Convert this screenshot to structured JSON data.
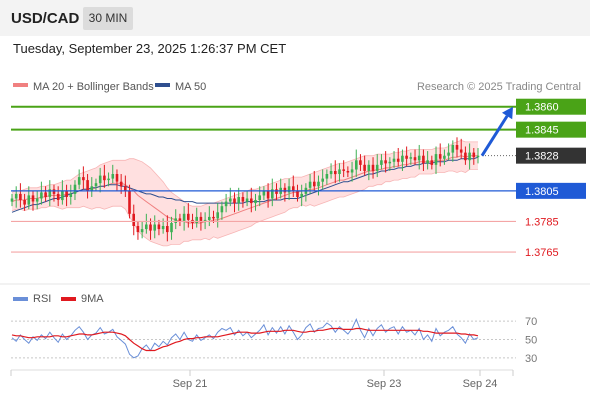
{
  "header": {
    "symbol": "USD/CAD",
    "timeframe": "30 MIN"
  },
  "datetime": "Tuesday, September 23, 2025 1:26:37 PM CET",
  "legend": {
    "ma20_label": "MA 20 + Bollinger Bands",
    "ma50_label": "MA 50",
    "credit": "Research © 2025 Trading Central",
    "ma20_color": "#f08080",
    "ma50_color": "#2f4f8f"
  },
  "rsi_legend": {
    "rsi_label": "RSI",
    "ma_label": "9MA",
    "rsi_color": "#6a8fd8",
    "ma_color": "#e0191f"
  },
  "colors": {
    "up_candle": "#3cb054",
    "down_candle": "#e0191f",
    "resistance": "#4aa317",
    "support": "#1f5ad6",
    "target_line": "#f4a6a6",
    "arrow": "#1f5ad6",
    "bollinger_fill": "#ffd5d5",
    "current_price_bg": "#333333"
  },
  "chart_data": {
    "type": "candlestick",
    "ylim": [
      1.375,
      1.3867
    ],
    "levels": [
      {
        "price": 1.386,
        "label": "1.3860",
        "kind": "resistance"
      },
      {
        "price": 1.3845,
        "label": "1.3845",
        "kind": "resistance"
      },
      {
        "price": 1.3828,
        "label": "1.3828",
        "kind": "current"
      },
      {
        "price": 1.3805,
        "label": "1.3805",
        "kind": "pivot"
      },
      {
        "price": 1.3785,
        "label": "1.3785",
        "kind": "support"
      },
      {
        "price": 1.3765,
        "label": "1.3765",
        "kind": "support"
      }
    ],
    "x_ticks": [
      "Sep 21",
      "Sep 23",
      "Sep 24"
    ],
    "close": [
      1.38,
      1.3803,
      1.3799,
      1.3796,
      1.3802,
      1.3798,
      1.38,
      1.3804,
      1.3801,
      1.3806,
      1.3803,
      1.3799,
      1.3805,
      1.3801,
      1.3803,
      1.3809,
      1.3814,
      1.3812,
      1.3805,
      1.3808,
      1.381,
      1.3815,
      1.3812,
      1.3813,
      1.3816,
      1.3811,
      1.3808,
      1.3805,
      1.379,
      1.3782,
      1.3778,
      1.378,
      1.3783,
      1.3779,
      1.3783,
      1.378,
      1.3782,
      1.3778,
      1.3784,
      1.3787,
      1.3785,
      1.379,
      1.3786,
      1.3784,
      1.3788,
      1.3785,
      1.3786,
      1.3788,
      1.3787,
      1.3791,
      1.3795,
      1.3798,
      1.38,
      1.3797,
      1.3801,
      1.3798,
      1.38,
      1.3797,
      1.3799,
      1.3802,
      1.3805,
      1.38,
      1.3806,
      1.3803,
      1.3807,
      1.3804,
      1.3808,
      1.3805,
      1.3801,
      1.3803,
      1.3807,
      1.3811,
      1.3808,
      1.3811,
      1.3813,
      1.3816,
      1.3818,
      1.3816,
      1.3819,
      1.3818,
      1.3817,
      1.3819,
      1.3825,
      1.3822,
      1.3818,
      1.3822,
      1.3818,
      1.3822,
      1.3825,
      1.3823,
      1.3824,
      1.3826,
      1.3824,
      1.3828,
      1.3826,
      1.3827,
      1.3825,
      1.3828,
      1.3823,
      1.3825,
      1.3822,
      1.3829,
      1.3826,
      1.3828,
      1.383,
      1.3835,
      1.3832,
      1.383,
      1.3825,
      1.383,
      1.3827,
      1.3828
    ],
    "ma20": [
      1.3798,
      1.3799,
      1.3799,
      1.3799,
      1.38,
      1.38,
      1.38,
      1.3801,
      1.3801,
      1.3802,
      1.3802,
      1.3802,
      1.3802,
      1.3803,
      1.3803,
      1.3804,
      1.3805,
      1.3806,
      1.3806,
      1.3806,
      1.3807,
      1.3808,
      1.3808,
      1.3809,
      1.381,
      1.381,
      1.381,
      1.3809,
      1.3807,
      1.3805,
      1.3802,
      1.38,
      1.3798,
      1.3796,
      1.3794,
      1.3792,
      1.379,
      1.3788,
      1.3787,
      1.3786,
      1.3785,
      1.3785,
      1.3784,
      1.3784,
      1.3784,
      1.3784,
      1.3785,
      1.3785,
      1.3786,
      1.3786,
      1.3787,
      1.3788,
      1.3789,
      1.379,
      1.3791,
      1.3792,
      1.3793,
      1.3794,
      1.3795,
      1.3796,
      1.3797,
      1.3798,
      1.3799,
      1.38,
      1.3801,
      1.3802,
      1.3803,
      1.3804,
      1.3804,
      1.3805,
      1.3805,
      1.3806,
      1.3806,
      1.3807,
      1.3808,
      1.3809,
      1.381,
      1.3811,
      1.3812,
      1.3812,
      1.3813,
      1.3814,
      1.3815,
      1.3816,
      1.3817,
      1.3818,
      1.3818,
      1.3819,
      1.3819,
      1.382,
      1.382,
      1.3821,
      1.3821,
      1.3822,
      1.3822,
      1.3823,
      1.3823,
      1.3824,
      1.3824,
      1.3824,
      1.3824,
      1.3825,
      1.3825,
      1.3825,
      1.3826,
      1.3827,
      1.3827,
      1.3828,
      1.3827,
      1.3828,
      1.3828,
      1.3828
    ],
    "band_upper": [
      1.3804,
      1.3805,
      1.3805,
      1.3806,
      1.3807,
      1.3807,
      1.3807,
      1.3808,
      1.3808,
      1.3809,
      1.3809,
      1.381,
      1.3811,
      1.3812,
      1.3812,
      1.3814,
      1.3816,
      1.3817,
      1.3818,
      1.3819,
      1.382,
      1.3822,
      1.3823,
      1.3824,
      1.3825,
      1.3825,
      1.3825,
      1.3825,
      1.3826,
      1.3826,
      1.3825,
      1.3824,
      1.3822,
      1.382,
      1.3817,
      1.3814,
      1.3811,
      1.3807,
      1.3804,
      1.3802,
      1.38,
      1.3798,
      1.3796,
      1.3795,
      1.3795,
      1.3795,
      1.3796,
      1.3797,
      1.3797,
      1.3798,
      1.3799,
      1.38,
      1.3801,
      1.3802,
      1.3803,
      1.3804,
      1.3805,
      1.3806,
      1.3806,
      1.3807,
      1.3808,
      1.3809,
      1.381,
      1.3811,
      1.3812,
      1.3813,
      1.3813,
      1.3814,
      1.3814,
      1.3814,
      1.3815,
      1.3816,
      1.3817,
      1.3818,
      1.3819,
      1.382,
      1.3821,
      1.3822,
      1.3823,
      1.3823,
      1.3824,
      1.3825,
      1.3826,
      1.3827,
      1.3828,
      1.3828,
      1.3828,
      1.3829,
      1.3829,
      1.3829,
      1.3829,
      1.383,
      1.383,
      1.3831,
      1.3831,
      1.3832,
      1.3832,
      1.3832,
      1.3832,
      1.3832,
      1.3832,
      1.3833,
      1.3833,
      1.3833,
      1.3834,
      1.3836,
      1.3837,
      1.3838,
      1.3837,
      1.3837,
      1.3837,
      1.3837
    ],
    "band_lower": [
      1.3792,
      1.3793,
      1.3793,
      1.3792,
      1.3793,
      1.3793,
      1.3793,
      1.3794,
      1.3794,
      1.3795,
      1.3795,
      1.3794,
      1.3793,
      1.3794,
      1.3794,
      1.3794,
      1.3794,
      1.3795,
      1.3794,
      1.3793,
      1.3794,
      1.3794,
      1.3793,
      1.3794,
      1.3795,
      1.3795,
      1.3795,
      1.3793,
      1.3788,
      1.3784,
      1.3779,
      1.3776,
      1.3774,
      1.3772,
      1.3771,
      1.377,
      1.3769,
      1.3769,
      1.377,
      1.377,
      1.377,
      1.3772,
      1.3772,
      1.3773,
      1.3773,
      1.3773,
      1.3774,
      1.3773,
      1.3775,
      1.3774,
      1.3775,
      1.3776,
      1.3777,
      1.3778,
      1.3779,
      1.378,
      1.3781,
      1.3782,
      1.3784,
      1.3785,
      1.3786,
      1.3787,
      1.3788,
      1.3789,
      1.379,
      1.3791,
      1.3793,
      1.3794,
      1.3794,
      1.3796,
      1.3795,
      1.3796,
      1.3795,
      1.3796,
      1.3797,
      1.3798,
      1.3799,
      1.38,
      1.3801,
      1.3801,
      1.3802,
      1.3803,
      1.3804,
      1.3805,
      1.3806,
      1.3808,
      1.3808,
      1.3809,
      1.3809,
      1.3811,
      1.3811,
      1.3812,
      1.3812,
      1.3813,
      1.3813,
      1.3814,
      1.3814,
      1.3816,
      1.3816,
      1.3816,
      1.3816,
      1.3817,
      1.3817,
      1.3817,
      1.3818,
      1.3818,
      1.3817,
      1.3818,
      1.3817,
      1.3819,
      1.3819,
      1.3819
    ],
    "ma50": [
      1.3791,
      1.3792,
      1.3793,
      1.3794,
      1.3795,
      1.3796,
      1.3796,
      1.3797,
      1.3798,
      1.3799,
      1.38,
      1.38,
      1.3801,
      1.3802,
      1.3803,
      1.3804,
      1.3805,
      1.3806,
      1.3806,
      1.3807,
      1.3807,
      1.3808,
      1.3808,
      1.3809,
      1.3809,
      1.3809,
      1.3808,
      1.3808,
      1.3807,
      1.3806,
      1.3805,
      1.3804,
      1.3803,
      1.3803,
      1.3802,
      1.3801,
      1.3801,
      1.38,
      1.38,
      1.3799,
      1.3799,
      1.3798,
      1.3798,
      1.3798,
      1.3797,
      1.3797,
      1.3797,
      1.3797,
      1.3797,
      1.3797,
      1.3797,
      1.3797,
      1.3797,
      1.3797,
      1.3797,
      1.3797,
      1.3798,
      1.3798,
      1.3798,
      1.3798,
      1.3798,
      1.3799,
      1.3799,
      1.3799,
      1.3799,
      1.38,
      1.38,
      1.38,
      1.38,
      1.3801,
      1.3802,
      1.3803,
      1.3804,
      1.3805,
      1.3806,
      1.3807,
      1.3808,
      1.3809,
      1.381,
      1.3811,
      1.3811,
      1.3812,
      1.3813,
      1.3814,
      1.3815,
      1.3816,
      1.3816,
      1.3817,
      1.3818,
      1.3818,
      1.3819,
      1.3819,
      1.382,
      1.382,
      1.3821,
      1.3821,
      1.3822,
      1.3822,
      1.3823,
      1.3823,
      1.3823,
      1.3824,
      1.3824,
      1.3824,
      1.3825,
      1.3825,
      1.3825,
      1.3826,
      1.3826,
      1.3826,
      1.3826,
      1.3827
    ],
    "rsi": {
      "ticks": [
        70,
        50,
        30
      ],
      "ylim": [
        20,
        80
      ],
      "rsi": [
        52,
        48,
        55,
        50,
        46,
        53,
        49,
        55,
        51,
        58,
        52,
        47,
        56,
        50,
        54,
        60,
        64,
        58,
        50,
        55,
        57,
        63,
        56,
        58,
        61,
        53,
        49,
        45,
        34,
        30,
        32,
        40,
        44,
        38,
        46,
        42,
        48,
        44,
        52,
        56,
        50,
        58,
        50,
        48,
        55,
        49,
        52,
        55,
        51,
        58,
        62,
        60,
        63,
        55,
        60,
        54,
        58,
        52,
        56,
        60,
        66,
        55,
        63,
        57,
        64,
        56,
        65,
        58,
        50,
        55,
        63,
        67,
        58,
        62,
        63,
        68,
        65,
        58,
        64,
        60,
        56,
        62,
        72,
        60,
        52,
        62,
        54,
        62,
        66,
        58,
        62,
        64,
        56,
        64,
        58,
        60,
        55,
        62,
        50,
        55,
        48,
        62,
        54,
        58,
        60,
        64,
        56,
        52,
        46,
        56,
        50,
        52
      ],
      "ma9": [
        55,
        54,
        54,
        53,
        52,
        52,
        53,
        53,
        53,
        53,
        54,
        54,
        53,
        53,
        54,
        55,
        56,
        56,
        55,
        55,
        56,
        57,
        58,
        58,
        58,
        57,
        56,
        54,
        50,
        46,
        43,
        40,
        38,
        38,
        38,
        40,
        42,
        43,
        45,
        47,
        48,
        50,
        51,
        51,
        52,
        52,
        53,
        53,
        53,
        53,
        54,
        55,
        56,
        57,
        58,
        58,
        58,
        57,
        57,
        57,
        58,
        59,
        59,
        59,
        59,
        60,
        60,
        60,
        59,
        58,
        58,
        59,
        59,
        60,
        60,
        61,
        62,
        62,
        62,
        61,
        61,
        61,
        62,
        62,
        61,
        60,
        60,
        60,
        60,
        60,
        60,
        60,
        60,
        60,
        60,
        60,
        60,
        60,
        59,
        59,
        58,
        57,
        57,
        57,
        57,
        57,
        57,
        56,
        56,
        55,
        55,
        54
      ]
    }
  }
}
